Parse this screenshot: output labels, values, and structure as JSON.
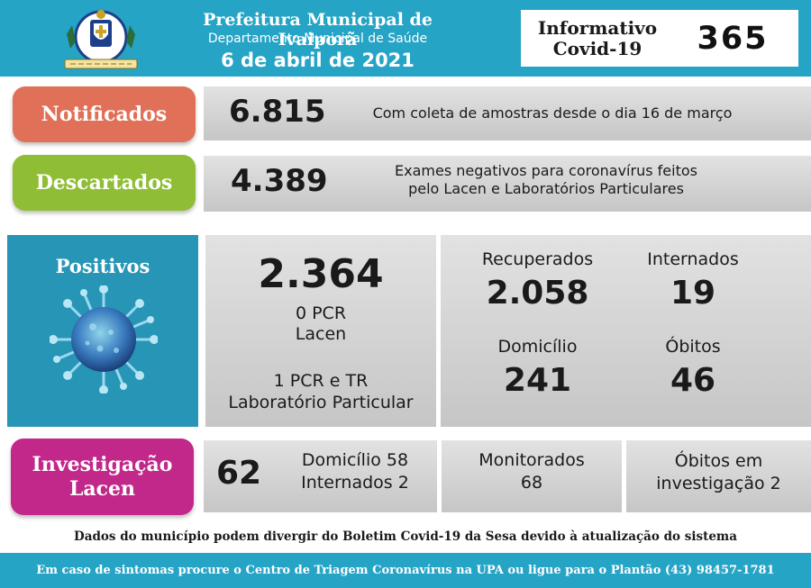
{
  "header": {
    "title": "Prefeitura Municipal de Ivaiporã",
    "department": "Departamento Municipal de Saúde",
    "date": "6 de abril de 2021",
    "info_label_line1": "Informativo",
    "info_label_line2": "Covid-19",
    "info_number": "365",
    "background_color": "#25a4c6"
  },
  "notificados": {
    "label": "Notificados",
    "value": "6.815",
    "description": "Com coleta de amostras desde o dia 16 de março",
    "color": "#e07058"
  },
  "descartados": {
    "label": "Descartados",
    "value": "4.389",
    "description_line1": "Exames negativos para coronavírus feitos",
    "description_line2": "pelo Lacen e Laboratórios Particulares",
    "color": "#8fbd35"
  },
  "positivos": {
    "label": "Positivos",
    "icon": "coronavirus-icon",
    "total": "2.364",
    "lacen_line1": "0 PCR",
    "lacen_line2": "Lacen",
    "particular_line1": "1 PCR e TR",
    "particular_line2": "Laboratório Particular",
    "color": "#2795b5"
  },
  "stats": {
    "recuperados_label": "Recuperados",
    "recuperados_value": "2.058",
    "internados_label": "Internados",
    "internados_value": "19",
    "domicilio_label": "Domicílio",
    "domicilio_value": "241",
    "obitos_label": "Óbitos",
    "obitos_value": "46"
  },
  "investigacao": {
    "label_line1": "Investigação",
    "label_line2": "Lacen",
    "value": "62",
    "domicilio_text": "Domicílio 58",
    "internados_text": "Internados 2",
    "monitorados_label": "Monitorados",
    "monitorados_value": "68",
    "obitos_line1": "Óbitos em",
    "obitos_line2": "investigação 2",
    "color": "#c2278a"
  },
  "disclaimer": "Dados do município podem divergir do Boletim Covid-19 da Sesa devido à atualização do sistema",
  "footer": "Em caso de sintomas procure o Centro de Triagem Coronavírus na UPA ou ligue para o Plantão (43) 98457-1781"
}
